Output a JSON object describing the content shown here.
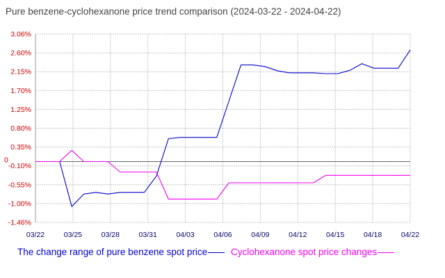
{
  "chart_data": {
    "type": "line",
    "title": "Pure benzene-cyclohexanone price trend comparison (2024-03-22 - 2024-04-22)",
    "xlabel": "",
    "ylabel": "",
    "x_tick_labels": [
      "03/22",
      "03/25",
      "03/28",
      "03/31",
      "04/03",
      "04/06",
      "04/09",
      "04/12",
      "04/15",
      "04/18",
      "04/22"
    ],
    "y_tick_labels": [
      "3.06%",
      "2.60%",
      "2.15%",
      "1.70%",
      "1.25%",
      "0.80%",
      "0.35%",
      "-0.10%",
      "-0.55%",
      "-1.00%",
      "-1.46%"
    ],
    "ylim": [
      -1.46,
      3.06
    ],
    "zero_label": "0",
    "grid": true,
    "legend_position": "bottom-left",
    "x": [
      "03/22",
      "03/23",
      "03/24",
      "03/25",
      "03/26",
      "03/27",
      "03/28",
      "03/29",
      "03/30",
      "03/31",
      "04/01",
      "04/02",
      "04/03",
      "04/04",
      "04/05",
      "04/06",
      "04/07",
      "04/08",
      "04/09",
      "04/10",
      "04/11",
      "04/12",
      "04/13",
      "04/14",
      "04/15",
      "04/16",
      "04/17",
      "04/18",
      "04/19",
      "04/20",
      "04/21",
      "04/22"
    ],
    "series": [
      {
        "name": "The change range of pure benzene spot price",
        "color": "#0000cc",
        "values": [
          0,
          0,
          0,
          -1.08,
          -0.78,
          -0.74,
          -0.78,
          -0.74,
          -0.74,
          -0.74,
          -0.35,
          0.55,
          0.58,
          0.58,
          0.58,
          0.58,
          1.45,
          2.32,
          2.32,
          2.28,
          2.18,
          2.13,
          2.13,
          2.13,
          2.11,
          2.11,
          2.19,
          2.35,
          2.24,
          2.24,
          2.24,
          2.68
        ]
      },
      {
        "name": "Cyclohexanone spot price changes",
        "color": "#ee00ee",
        "values": [
          0,
          0,
          0,
          0.27,
          0,
          0,
          0,
          -0.25,
          -0.25,
          -0.25,
          -0.25,
          -0.9,
          -0.9,
          -0.9,
          -0.9,
          -0.9,
          -0.51,
          -0.51,
          -0.51,
          -0.51,
          -0.51,
          -0.51,
          -0.51,
          -0.51,
          -0.33,
          -0.33,
          -0.33,
          -0.33,
          -0.33,
          -0.33,
          -0.33,
          -0.33
        ]
      }
    ]
  },
  "colors": {
    "title_text": "#444444",
    "y_tick_text": "#cc0000",
    "x_tick_text": "#000066",
    "grid": "#c8c8c8",
    "axis": "#999999"
  }
}
